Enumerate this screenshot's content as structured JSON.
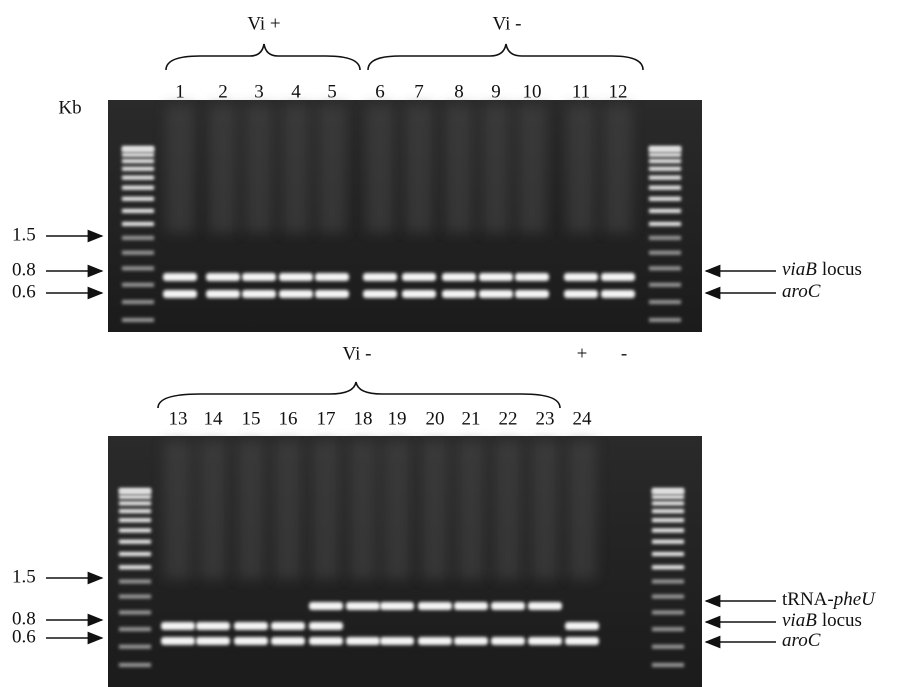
{
  "top_panel": {
    "groups": [
      {
        "label": "Vi +"
      },
      {
        "label": "Vi -"
      }
    ],
    "lanes": [
      "1",
      "2",
      "3",
      "4",
      "5",
      "6",
      "7",
      "8",
      "9",
      "10",
      "11",
      "12"
    ],
    "unit": "Kb",
    "size_markers": [
      "1.5",
      "0.8",
      "0.6"
    ],
    "band_labels": [
      {
        "italic": "viaB",
        "plain": "locus"
      },
      {
        "italic": "aroC"
      }
    ]
  },
  "bottom_panel": {
    "groups": [
      {
        "label": "Vi -"
      },
      {
        "label": "+"
      },
      {
        "label": "-"
      }
    ],
    "lanes": [
      "13",
      "14",
      "15",
      "16",
      "17",
      "18",
      "19",
      "20",
      "21",
      "22",
      "23",
      "24"
    ],
    "size_markers": [
      "1.5",
      "0.8",
      "0.6"
    ],
    "band_labels": [
      {
        "plain": "tRNA-",
        "italic": "pheU"
      },
      {
        "italic": "viaB",
        "plain": "locus"
      },
      {
        "italic": "aroC"
      }
    ]
  }
}
